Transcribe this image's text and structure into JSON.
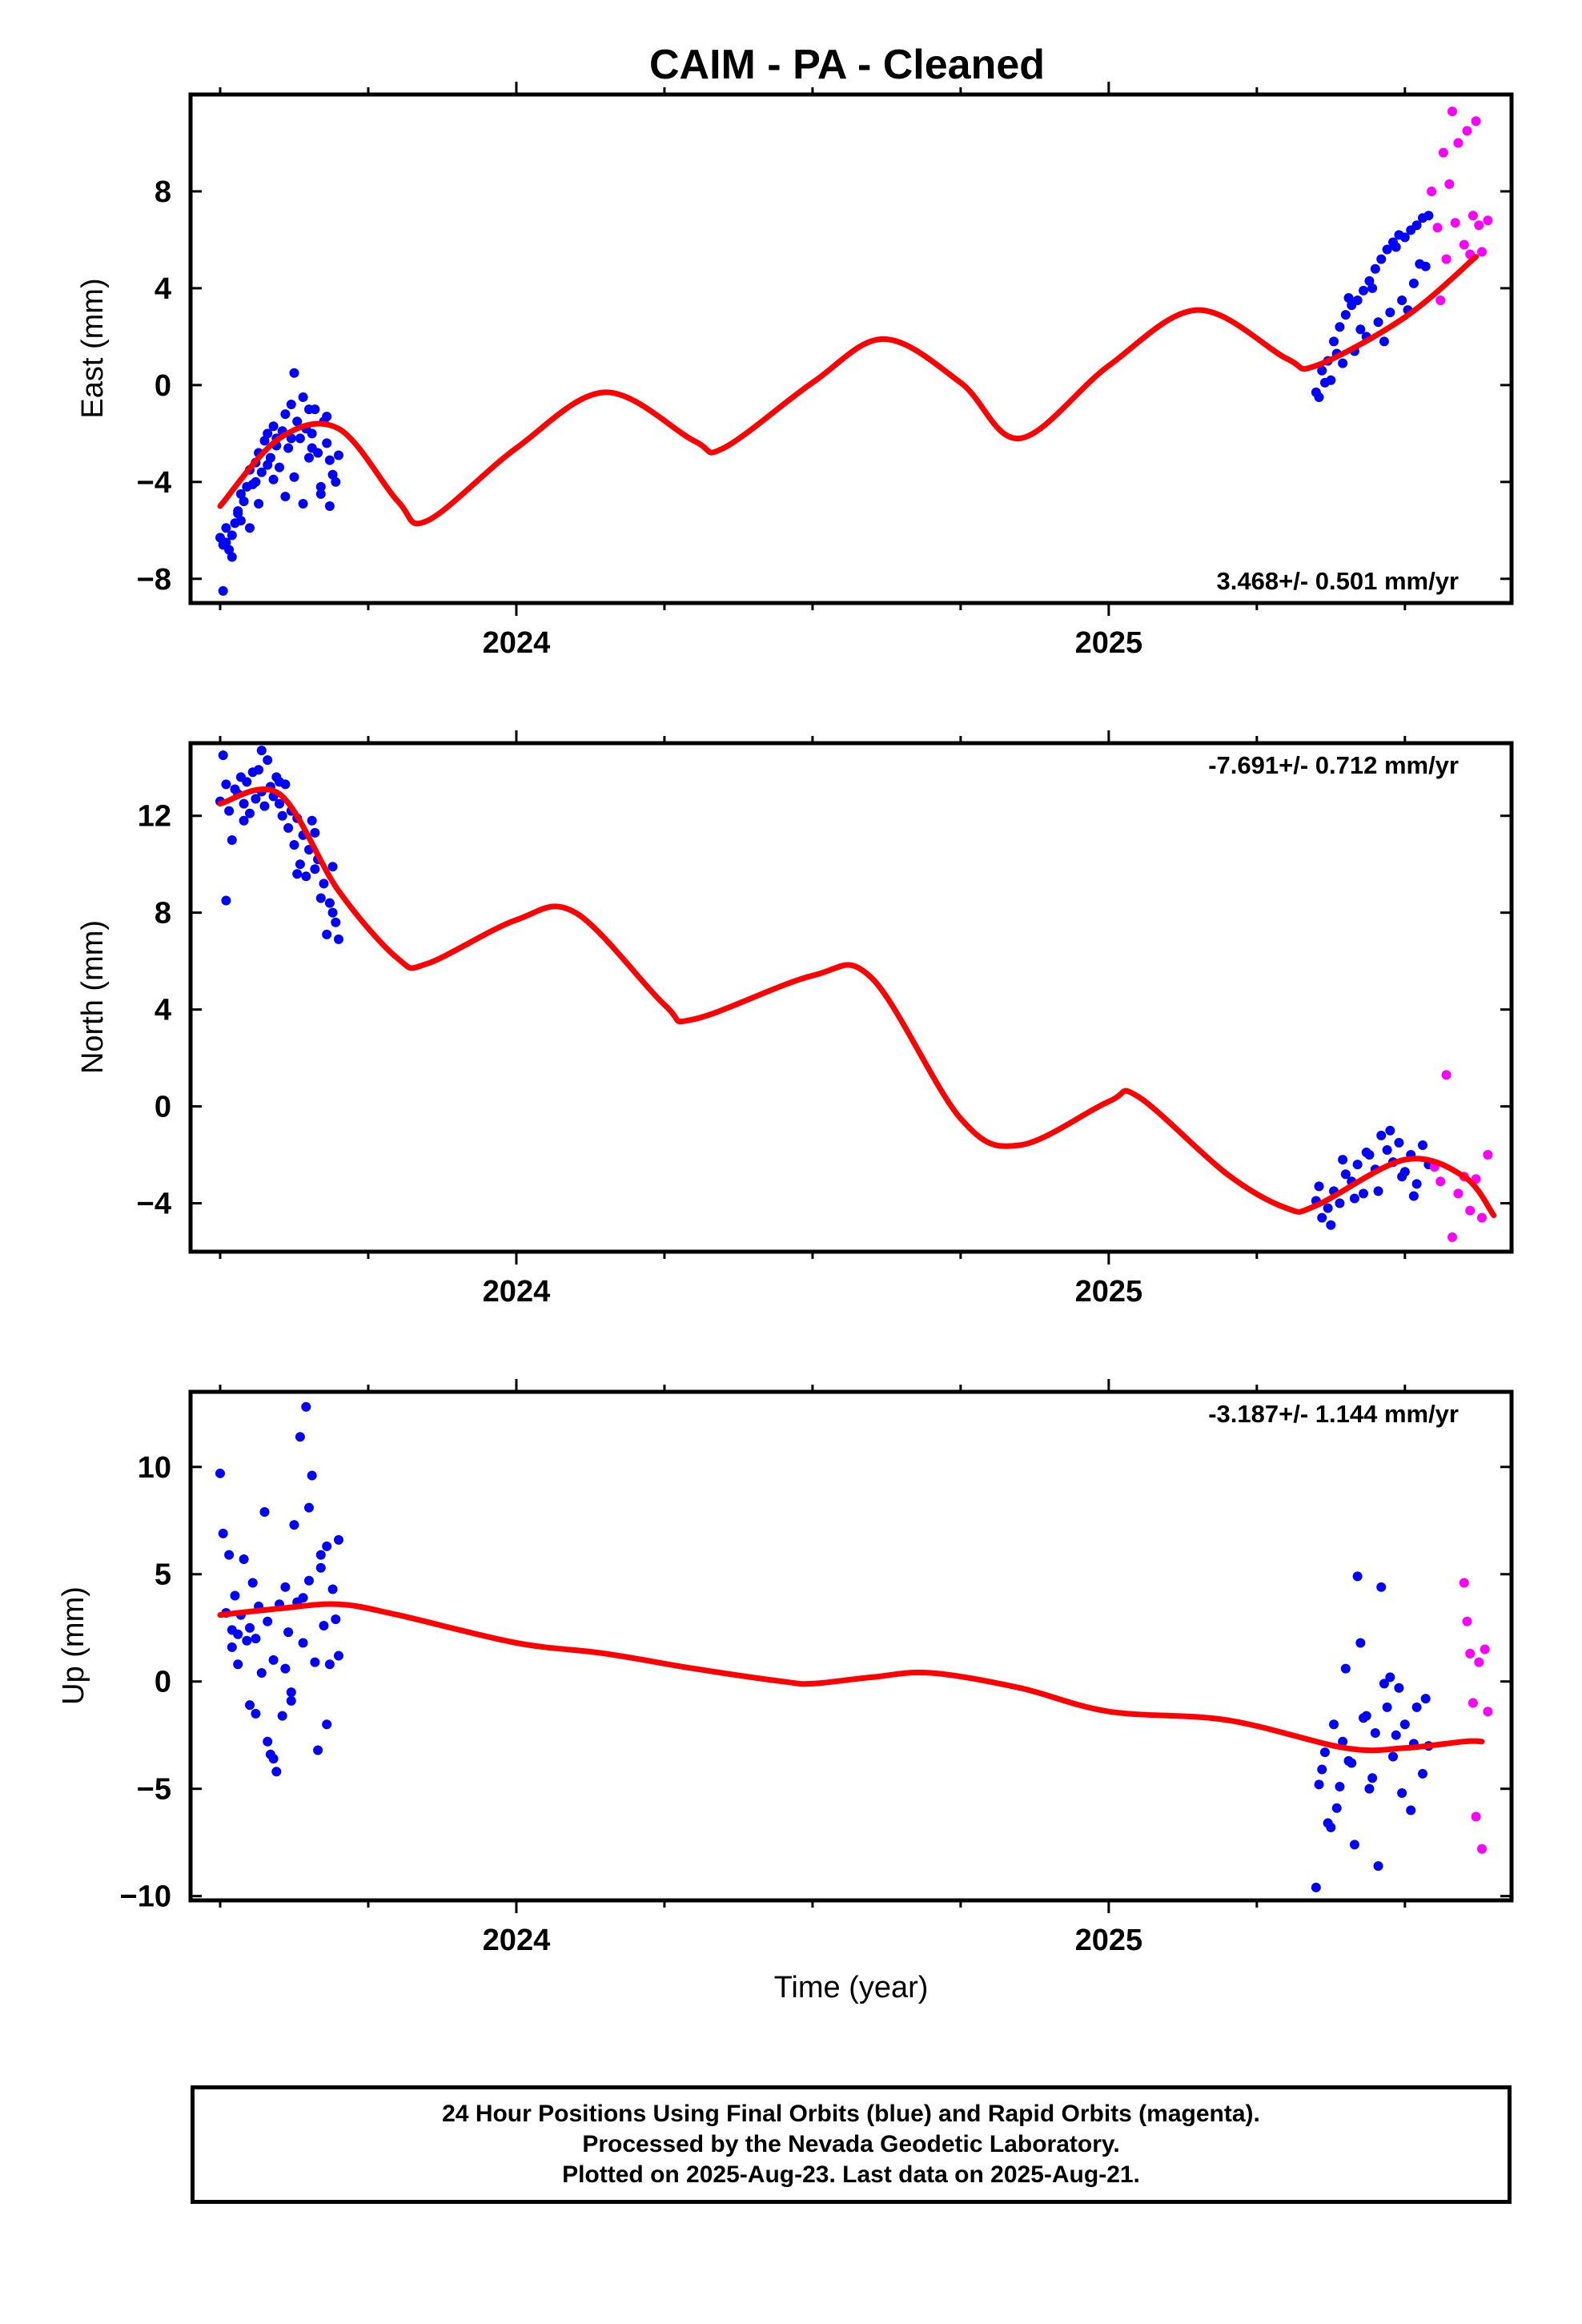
{
  "title": "CAIM  - PA - Cleaned",
  "colors": {
    "final": "#0000ff",
    "rapid": "#ff00ff",
    "model": "#ff0000"
  },
  "chart_data": [
    {
      "type": "scatter",
      "ylabel": "East (mm)",
      "xlabel": "",
      "rate_text": "3.468+/- 0.501 mm/yr",
      "rate_position": "bottom-right",
      "xlim": [
        2023.45,
        2025.68
      ],
      "ylim": [
        -9,
        12
      ],
      "x_ticks": [
        2024,
        2025
      ],
      "x_tick_labels": [
        "2024",
        "2025"
      ],
      "y_ticks": [
        -8,
        -4,
        0,
        4,
        8
      ],
      "y_tick_labels": [
        "−8",
        "−4",
        "0",
        "4",
        "8"
      ],
      "model": {
        "name": "",
        "x": [
          2023.5,
          2023.6,
          2023.7,
          2023.8,
          2023.85,
          2024.0,
          2024.15,
          2024.3,
          2024.35,
          2024.5,
          2024.62,
          2024.75,
          2024.85,
          2025.0,
          2025.15,
          2025.3,
          2025.35,
          2025.5,
          2025.62
        ],
        "y": [
          -5,
          -2.2,
          -1.8,
          -4.8,
          -5.6,
          -2.6,
          -0.3,
          -2.3,
          -2.6,
          0.1,
          1.9,
          0.1,
          -2.2,
          0.8,
          3.1,
          1.1,
          0.8,
          2.8,
          5.3
        ]
      },
      "series": [
        {
          "name": "",
          "orbit": "final",
          "x": [
            2023.5,
            2023.505,
            2023.51,
            2023.515,
            2023.52,
            2023.525,
            2023.53,
            2023.535,
            2023.54,
            2023.545,
            2023.55,
            2023.555,
            2023.56,
            2023.565,
            2023.57,
            2023.575,
            2023.58,
            2023.585,
            2023.59,
            2023.595,
            2023.6,
            2023.605,
            2023.61,
            2023.615,
            2023.62,
            2023.625,
            2023.63,
            2023.635,
            2023.64,
            2023.645,
            2023.65,
            2023.655,
            2023.66,
            2023.665,
            2023.67,
            2023.675,
            2023.68,
            2023.685,
            2023.69,
            2023.695,
            2023.7,
            2023.505,
            2023.52,
            2023.535,
            2023.55,
            2023.565,
            2023.58,
            2023.595,
            2023.61,
            2023.625,
            2023.64,
            2023.655,
            2023.67,
            2023.685,
            2023.51,
            2023.53,
            2023.56,
            2023.59,
            2023.62,
            2023.65,
            2023.68,
            2025.35,
            2025.36,
            2025.37,
            2025.38,
            2025.39,
            2025.4,
            2025.41,
            2025.42,
            2025.43,
            2025.44,
            2025.45,
            2025.46,
            2025.47,
            2025.48,
            2025.49,
            2025.5,
            2025.51,
            2025.52,
            2025.53,
            2025.54,
            2025.355,
            2025.375,
            2025.395,
            2025.415,
            2025.435,
            2025.455,
            2025.475,
            2025.495,
            2025.515,
            2025.535,
            2025.365,
            2025.385,
            2025.405,
            2025.425,
            2025.445,
            2025.465,
            2025.485,
            2025.505,
            2025.525
          ],
          "y": [
            -6.3,
            -6.6,
            -5.9,
            -6.8,
            -7.1,
            -5.7,
            -5.2,
            -5.6,
            -4.8,
            -4.2,
            -3.5,
            -4.1,
            -3.2,
            -2.8,
            -3.6,
            -2.3,
            -2.0,
            -3.0,
            -1.7,
            -2.5,
            -3.4,
            -1.9,
            -1.2,
            -2.6,
            -0.8,
            0.5,
            -1.5,
            -2.2,
            -0.5,
            -1.8,
            -3.0,
            -2.0,
            -1.0,
            -2.8,
            -4.2,
            -1.5,
            -2.4,
            -3.1,
            -3.7,
            -4.0,
            -2.9,
            -8.5,
            -6.2,
            -4.5,
            -5.9,
            -4.9,
            -3.3,
            -2.2,
            -4.6,
            -3.8,
            -4.9,
            -2.6,
            -4.5,
            -5.0,
            -6.5,
            -5.3,
            -4.0,
            -3.9,
            -2.2,
            -1.0,
            -1.3,
            -0.3,
            0.6,
            1.0,
            1.8,
            2.4,
            2.9,
            3.3,
            3.5,
            3.9,
            4.3,
            4.8,
            5.2,
            5.6,
            5.9,
            6.2,
            6.1,
            6.4,
            6.6,
            6.9,
            7.0,
            -0.5,
            0.2,
            0.9,
            1.4,
            2.0,
            2.6,
            3.0,
            3.5,
            4.2,
            4.9,
            0.1,
            1.3,
            3.6,
            2.3,
            4.0,
            1.8,
            5.7,
            3.1,
            5.0
          ]
        },
        {
          "name": "",
          "orbit": "rapid",
          "x": [
            2025.545,
            2025.555,
            2025.56,
            2025.565,
            2025.57,
            2025.575,
            2025.58,
            2025.585,
            2025.59,
            2025.6,
            2025.605,
            2025.61,
            2025.615,
            2025.62,
            2025.625,
            2025.63,
            2025.64
          ],
          "y": [
            8.0,
            6.5,
            3.5,
            9.6,
            5.2,
            8.3,
            11.3,
            6.7,
            10.0,
            5.8,
            10.5,
            5.4,
            7.0,
            10.9,
            6.6,
            5.5,
            6.8
          ]
        }
      ]
    },
    {
      "type": "scatter",
      "ylabel": "North (mm)",
      "xlabel": "",
      "rate_text": "-7.691+/- 0.712 mm/yr",
      "rate_position": "top-right",
      "xlim": [
        2023.45,
        2025.68
      ],
      "ylim": [
        -6,
        15
      ],
      "x_ticks": [
        2024,
        2025
      ],
      "x_tick_labels": [
        "2024",
        "2025"
      ],
      "y_ticks": [
        -4,
        0,
        4,
        8,
        12
      ],
      "y_tick_labels": [
        "−4",
        "0",
        "4",
        "8",
        "12"
      ],
      "model": {
        "name": "",
        "x": [
          2023.5,
          2023.6,
          2023.7,
          2023.8,
          2023.85,
          2024.0,
          2024.1,
          2024.25,
          2024.3,
          2024.5,
          2024.6,
          2024.75,
          2024.85,
          2025.0,
          2025.05,
          2025.2,
          2025.3,
          2025.35,
          2025.5,
          2025.6,
          2025.65
        ],
        "y": [
          12.5,
          12.9,
          8.9,
          6.1,
          5.9,
          7.7,
          8.0,
          4.2,
          3.6,
          5.4,
          5.3,
          -0.5,
          -1.6,
          0.2,
          0.4,
          -2.8,
          -4.2,
          -4.1,
          -2.2,
          -2.9,
          -4.5
        ]
      },
      "series": [
        {
          "name": "",
          "orbit": "final",
          "x": [
            2023.5,
            2023.505,
            2023.51,
            2023.515,
            2023.52,
            2023.525,
            2023.53,
            2023.535,
            2023.54,
            2023.545,
            2023.55,
            2023.555,
            2023.56,
            2023.565,
            2023.57,
            2023.575,
            2023.58,
            2023.585,
            2023.59,
            2023.595,
            2023.6,
            2023.605,
            2023.61,
            2023.615,
            2023.62,
            2023.625,
            2023.63,
            2023.635,
            2023.64,
            2023.645,
            2023.65,
            2023.655,
            2023.66,
            2023.665,
            2023.67,
            2023.675,
            2023.68,
            2023.685,
            2023.69,
            2023.695,
            2023.7,
            2023.51,
            2023.54,
            2023.57,
            2023.6,
            2023.63,
            2023.66,
            2023.69,
            2025.35,
            2025.36,
            2025.37,
            2025.38,
            2025.39,
            2025.4,
            2025.41,
            2025.42,
            2025.43,
            2025.44,
            2025.45,
            2025.46,
            2025.47,
            2025.48,
            2025.49,
            2025.5,
            2025.51,
            2025.52,
            2025.53,
            2025.54,
            2025.355,
            2025.375,
            2025.395,
            2025.415,
            2025.435,
            2025.455,
            2025.475,
            2025.495,
            2025.515
          ],
          "y": [
            12.6,
            14.5,
            13.3,
            12.2,
            11.0,
            13.1,
            12.9,
            13.6,
            12.5,
            13.4,
            12.1,
            13.8,
            12.7,
            13.9,
            13.0,
            12.4,
            14.3,
            13.2,
            12.8,
            13.6,
            12.5,
            12.0,
            13.3,
            11.5,
            12.2,
            10.8,
            11.9,
            10.0,
            11.2,
            9.5,
            10.6,
            11.8,
            9.8,
            10.2,
            8.6,
            9.2,
            7.1,
            8.4,
            9.9,
            7.6,
            6.9,
            8.5,
            11.8,
            14.7,
            13.4,
            9.6,
            11.3,
            8.0,
            -3.9,
            -4.6,
            -4.2,
            -3.5,
            -4.0,
            -2.8,
            -3.1,
            -2.4,
            -3.6,
            -2.0,
            -2.6,
            -1.2,
            -1.8,
            -2.3,
            -1.5,
            -2.7,
            -2.0,
            -3.2,
            -1.6,
            -2.4,
            -3.3,
            -4.9,
            -2.2,
            -3.8,
            -1.9,
            -3.5,
            -1.0,
            -2.9,
            -3.7
          ]
        },
        {
          "name": "",
          "orbit": "rapid",
          "x": [
            2025.55,
            2025.56,
            2025.57,
            2025.58,
            2025.59,
            2025.6,
            2025.61,
            2025.62,
            2025.63,
            2025.64
          ],
          "y": [
            -2.5,
            -3.1,
            1.3,
            -5.4,
            -3.6,
            -2.9,
            -4.3,
            -3.0,
            -4.6,
            -2.0
          ]
        }
      ]
    },
    {
      "type": "scatter",
      "ylabel": "Up (mm)",
      "xlabel": "Time (year)",
      "rate_text": "-3.187+/- 1.144 mm/yr",
      "rate_position": "top-right",
      "xlim": [
        2023.45,
        2025.68
      ],
      "ylim": [
        -10.2,
        13.5
      ],
      "x_ticks": [
        2024,
        2025
      ],
      "x_tick_labels": [
        "2024",
        "2025"
      ],
      "y_ticks": [
        -10,
        -5,
        0,
        5,
        10
      ],
      "y_tick_labels": [
        "−10",
        "−5",
        "0",
        "5",
        "10"
      ],
      "model": {
        "name": "",
        "x": [
          2023.5,
          2023.6,
          2023.7,
          2023.8,
          2024.0,
          2024.15,
          2024.3,
          2024.45,
          2024.5,
          2024.6,
          2024.7,
          2024.85,
          2025.0,
          2025.2,
          2025.4,
          2025.5,
          2025.6,
          2025.63
        ],
        "y": [
          3.1,
          3.4,
          3.6,
          3.1,
          1.8,
          1.3,
          0.6,
          0.0,
          -0.1,
          0.2,
          0.4,
          -0.3,
          -1.4,
          -1.8,
          -3.1,
          -3.1,
          -2.8,
          -2.8
        ]
      },
      "series": [
        {
          "name": "",
          "orbit": "final",
          "x": [
            2023.5,
            2023.505,
            2023.51,
            2023.515,
            2023.52,
            2023.525,
            2023.53,
            2023.535,
            2023.54,
            2023.545,
            2023.55,
            2023.555,
            2023.56,
            2023.565,
            2023.57,
            2023.575,
            2023.58,
            2023.585,
            2023.59,
            2023.595,
            2023.6,
            2023.605,
            2023.61,
            2023.615,
            2023.62,
            2023.625,
            2023.63,
            2023.635,
            2023.64,
            2023.645,
            2023.65,
            2023.655,
            2023.66,
            2023.665,
            2023.67,
            2023.675,
            2023.68,
            2023.685,
            2023.69,
            2023.695,
            2023.7,
            2023.52,
            2023.55,
            2023.58,
            2023.61,
            2023.64,
            2023.67,
            2023.7,
            2023.53,
            2023.56,
            2023.59,
            2023.62,
            2023.65,
            2023.68,
            2025.35,
            2025.36,
            2025.37,
            2025.38,
            2025.39,
            2025.4,
            2025.41,
            2025.42,
            2025.43,
            2025.44,
            2025.45,
            2025.46,
            2025.47,
            2025.48,
            2025.49,
            2025.5,
            2025.51,
            2025.52,
            2025.53,
            2025.54,
            2025.355,
            2025.375,
            2025.395,
            2025.415,
            2025.435,
            2025.455,
            2025.475,
            2025.495,
            2025.515,
            2025.535,
            2025.365,
            2025.385,
            2025.405,
            2025.425,
            2025.445,
            2025.465,
            2025.485
          ],
          "y": [
            9.7,
            6.9,
            3.2,
            5.9,
            2.4,
            4.0,
            0.8,
            3.1,
            5.7,
            1.9,
            -1.1,
            4.6,
            2.0,
            3.5,
            0.4,
            7.9,
            2.8,
            -3.4,
            1.0,
            -4.2,
            3.6,
            -1.6,
            4.4,
            2.3,
            -0.5,
            7.3,
            3.7,
            11.4,
            1.8,
            12.8,
            4.7,
            9.6,
            0.9,
            -3.2,
            5.9,
            2.6,
            6.3,
            0.8,
            4.3,
            2.9,
            1.2,
            1.6,
            2.5,
            -2.8,
            0.6,
            3.9,
            5.3,
            6.6,
            2.2,
            -1.5,
            -3.6,
            -0.9,
            8.1,
            -2.0,
            -9.6,
            -4.1,
            -6.6,
            -2.0,
            -4.9,
            0.6,
            -3.8,
            4.9,
            -1.7,
            -5.0,
            -2.4,
            4.4,
            -1.2,
            -3.5,
            -0.3,
            -2.0,
            -6.0,
            -1.2,
            -4.3,
            -3.0,
            -4.8,
            -6.8,
            -2.8,
            -7.6,
            -1.6,
            -8.6,
            0.2,
            -5.2,
            -2.9,
            -0.8,
            -3.3,
            -5.9,
            -3.7,
            1.8,
            -4.5,
            -0.1,
            -2.5
          ]
        },
        {
          "name": "",
          "orbit": "rapid",
          "x": [
            2025.6,
            2025.605,
            2025.61,
            2025.615,
            2025.62,
            2025.625,
            2025.63,
            2025.635,
            2025.64
          ],
          "y": [
            4.6,
            2.8,
            1.3,
            -1.0,
            -6.3,
            0.9,
            -7.8,
            1.5,
            -1.4
          ]
        }
      ]
    }
  ],
  "caption": {
    "line1": "24 Hour Positions Using Final Orbits (blue) and Rapid Orbits (magenta).",
    "line2": "Processed by the Nevada Geodetic Laboratory.",
    "line3": "Plotted on 2025-Aug-23. Last data on 2025-Aug-21."
  }
}
